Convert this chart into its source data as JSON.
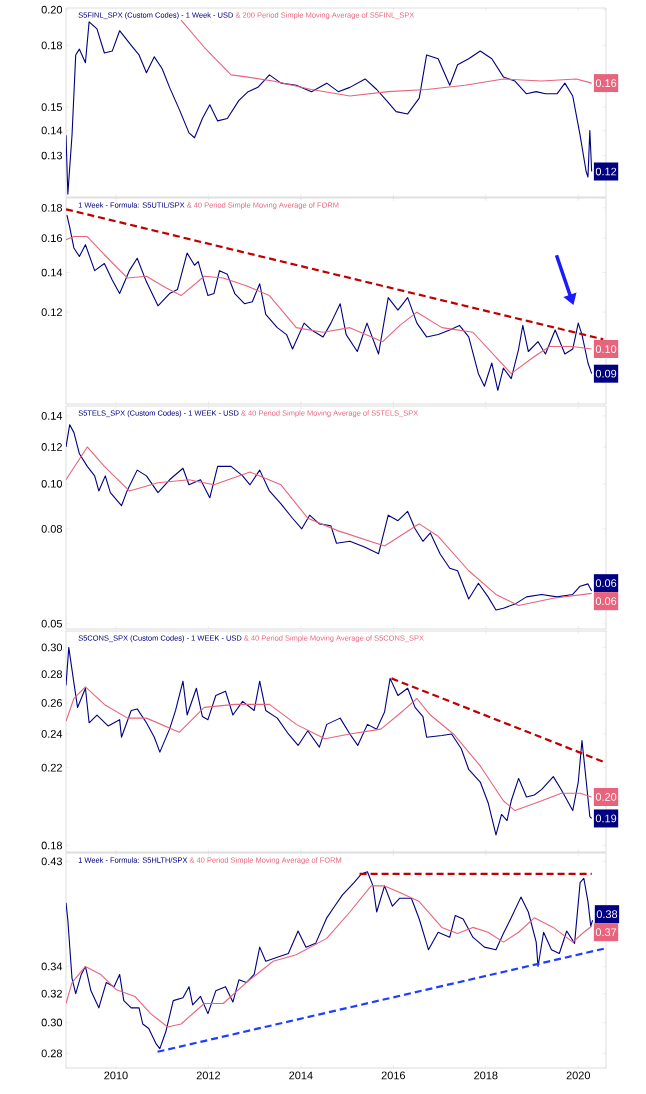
{
  "chart_data": [
    {
      "type": "line",
      "log": true,
      "tick_labels": "y",
      "xlim": [
        2008.92,
        2020.6
      ],
      "ylim": [
        0.115,
        0.201
      ],
      "xticks": [
        2010,
        2012,
        2014,
        2016,
        2018,
        2020
      ],
      "yticks": [
        {
          "value": 0.13,
          "label": "0.13"
        },
        {
          "value": 0.14,
          "label": "0.14"
        },
        {
          "value": 0.15,
          "label": "0.15"
        },
        {
          "value": 0.18,
          "label": "0.18"
        },
        {
          "value": 0.2,
          "label": "0.20"
        }
      ],
      "series": [
        {
          "name": "S5FINL_SPX (Custom Codes) - 1 Week - USD",
          "color": "#000080",
          "x": [
            2008.92,
            2008.96,
            2009.05,
            2009.13,
            2009.21,
            2009.34,
            2009.42,
            2009.59,
            2009.75,
            2009.92,
            2010.08,
            2010.33,
            2010.5,
            2010.66,
            2010.83,
            2011.0,
            2011.16,
            2011.37,
            2011.58,
            2011.7,
            2011.87,
            2012.03,
            2012.2,
            2012.41,
            2012.66,
            2012.86,
            2013.07,
            2013.32,
            2013.57,
            2013.9,
            2014.23,
            2014.56,
            2014.81,
            2015.06,
            2015.39,
            2015.64,
            2015.85,
            2016.06,
            2016.31,
            2016.56,
            2016.72,
            2016.97,
            2017.22,
            2017.39,
            2017.63,
            2017.88,
            2018.13,
            2018.38,
            2018.63,
            2018.88,
            2019.09,
            2019.29,
            2019.54,
            2019.71,
            2019.88,
            2020.04,
            2020.17,
            2020.21,
            2020.25,
            2020.29
          ],
          "values": [
            0.138,
            0.116,
            0.138,
            0.175,
            0.178,
            0.171,
            0.193,
            0.189,
            0.176,
            0.177,
            0.188,
            0.18,
            0.175,
            0.166,
            0.174,
            0.168,
            0.159,
            0.149,
            0.139,
            0.137,
            0.145,
            0.151,
            0.144,
            0.145,
            0.153,
            0.157,
            0.159,
            0.165,
            0.161,
            0.16,
            0.157,
            0.161,
            0.157,
            0.159,
            0.163,
            0.158,
            0.153,
            0.148,
            0.147,
            0.154,
            0.175,
            0.173,
            0.16,
            0.17,
            0.173,
            0.177,
            0.173,
            0.164,
            0.162,
            0.156,
            0.157,
            0.156,
            0.156,
            0.161,
            0.155,
            0.138,
            0.124,
            0.122,
            0.14,
            0.124
          ],
          "value_labels": [
            null,
            null,
            null,
            null,
            null,
            null,
            null,
            null,
            null,
            null,
            null,
            null,
            null,
            null,
            null,
            null,
            null,
            null,
            null,
            null,
            null,
            null,
            null,
            null,
            null,
            null,
            null,
            null,
            null,
            null,
            null,
            null,
            null,
            null,
            null,
            null,
            null,
            null,
            null,
            null,
            null,
            null,
            null,
            null,
            null,
            null,
            null,
            null,
            null,
            null,
            null,
            null,
            null,
            null,
            null,
            null,
            null,
            null,
            null,
            "0.12"
          ]
        },
        {
          "name": "& 200 Period Simple Moving Average of S5FINL_SPX",
          "color": "#e8647c",
          "x": [
            2011.41,
            2011.91,
            2012.49,
            2012.82,
            2013.4,
            2014.23,
            2015.06,
            2015.89,
            2016.72,
            2017.55,
            2018.38,
            2019.2,
            2019.96,
            2020.29
          ],
          "values": [
            0.194,
            0.179,
            0.165,
            0.164,
            0.162,
            0.158,
            0.155,
            0.157,
            0.158,
            0.16,
            0.163,
            0.162,
            0.163,
            0.161
          ],
          "value_labels": [
            null,
            null,
            null,
            null,
            null,
            null,
            null,
            null,
            null,
            null,
            null,
            null,
            null,
            "0.16"
          ]
        }
      ]
    },
    {
      "type": "line",
      "log": true,
      "tick_labels": "y",
      "xlim": [
        2008.92,
        2020.6
      ],
      "ylim": [
        0.084,
        0.187
      ],
      "xticks": [
        2010,
        2012,
        2014,
        2016,
        2018,
        2020
      ],
      "yticks": [
        {
          "value": 0.12,
          "label": "0.12"
        },
        {
          "value": 0.14,
          "label": "0.14"
        },
        {
          "value": 0.16,
          "label": "0.16"
        },
        {
          "value": 0.18,
          "label": "0.18"
        }
      ],
      "series": [
        {
          "name": "1 Week - Formula: S5UTIL/SPX",
          "color": "#000080",
          "x": [
            2008.94,
            2009.0,
            2009.09,
            2009.21,
            2009.34,
            2009.54,
            2009.75,
            2009.92,
            2010.08,
            2010.29,
            2010.46,
            2010.66,
            2010.91,
            2011.16,
            2011.33,
            2011.54,
            2011.7,
            2011.78,
            2011.99,
            2012.12,
            2012.24,
            2012.41,
            2012.57,
            2012.78,
            2012.95,
            2013.11,
            2013.24,
            2013.49,
            2013.69,
            2013.82,
            2014.07,
            2014.23,
            2014.48,
            2014.65,
            2014.85,
            2014.98,
            2015.22,
            2015.43,
            2015.68,
            2015.89,
            2016.1,
            2016.31,
            2016.51,
            2016.72,
            2016.97,
            2017.22,
            2017.43,
            2017.63,
            2017.84,
            2017.97,
            2018.13,
            2018.26,
            2018.38,
            2018.55,
            2018.71,
            2018.8,
            2018.92,
            2019.13,
            2019.29,
            2019.5,
            2019.71,
            2019.88,
            2020.0,
            2020.08,
            2020.21,
            2020.29
          ],
          "values": [
            0.175,
            0.167,
            0.154,
            0.149,
            0.156,
            0.141,
            0.145,
            0.136,
            0.129,
            0.141,
            0.148,
            0.135,
            0.123,
            0.129,
            0.131,
            0.151,
            0.144,
            0.146,
            0.128,
            0.129,
            0.141,
            0.139,
            0.129,
            0.124,
            0.125,
            0.134,
            0.119,
            0.113,
            0.11,
            0.104,
            0.115,
            0.112,
            0.109,
            0.115,
            0.124,
            0.11,
            0.103,
            0.115,
            0.102,
            0.127,
            0.121,
            0.127,
            0.115,
            0.109,
            0.11,
            0.112,
            0.114,
            0.109,
            0.0945,
            0.09,
            0.0985,
            0.0886,
            0.0966,
            0.0927,
            0.104,
            0.114,
            0.103,
            0.107,
            0.102,
            0.112,
            0.102,
            0.104,
            0.115,
            0.11,
            0.0985,
            0.0945
          ],
          "value_labels": [
            null,
            null,
            null,
            null,
            null,
            null,
            null,
            null,
            null,
            null,
            null,
            null,
            null,
            null,
            null,
            null,
            null,
            null,
            null,
            null,
            null,
            null,
            null,
            null,
            null,
            null,
            null,
            null,
            null,
            null,
            null,
            null,
            null,
            null,
            null,
            null,
            null,
            null,
            null,
            null,
            null,
            null,
            null,
            null,
            null,
            null,
            null,
            null,
            null,
            null,
            null,
            null,
            null,
            null,
            null,
            null,
            null,
            null,
            null,
            null,
            null,
            null,
            null,
            null,
            null,
            "0.09"
          ]
        },
        {
          "name": "& 40 Period Simple Moving Average of FORM",
          "color": "#e8647c",
          "x": [
            2008.92,
            2009.09,
            2009.38,
            2009.75,
            2010.25,
            2010.66,
            2011.08,
            2011.41,
            2011.91,
            2012.32,
            2012.82,
            2013.32,
            2013.9,
            2014.48,
            2015.06,
            2015.77,
            2016.14,
            2016.51,
            2017.05,
            2017.72,
            2018.55,
            2019.05,
            2019.38,
            2019.88,
            2020.29
          ],
          "values": [
            0.159,
            0.161,
            0.161,
            0.15,
            0.137,
            0.138,
            0.132,
            0.128,
            0.138,
            0.137,
            0.133,
            0.128,
            0.113,
            0.111,
            0.113,
            0.107,
            0.114,
            0.12,
            0.113,
            0.111,
            0.0945,
            0.101,
            0.105,
            0.105,
            0.104
          ],
          "value_labels": [
            null,
            null,
            null,
            null,
            null,
            null,
            null,
            null,
            null,
            null,
            null,
            null,
            null,
            null,
            null,
            null,
            null,
            null,
            null,
            null,
            null,
            null,
            null,
            null,
            "0.10"
          ]
        },
        {
          "type": "line",
          "color": "#c00000",
          "line_style": "dashed",
          "x": [
            2008.92,
            2020.54
          ],
          "values": [
            0.179,
            0.108
          ]
        }
      ]
    },
    {
      "type": "line",
      "log": true,
      "tick_labels": "y",
      "xlim": [
        2008.92,
        2020.6
      ],
      "ylim": [
        0.0487,
        0.147
      ],
      "xticks": [
        2010,
        2012,
        2014,
        2016,
        2018,
        2020
      ],
      "yticks": [
        {
          "value": 0.05,
          "label": "0.05"
        },
        {
          "value": 0.08,
          "label": "0.08"
        },
        {
          "value": 0.1,
          "label": "0.10"
        },
        {
          "value": 0.12,
          "label": "0.12"
        },
        {
          "value": 0.14,
          "label": "0.14"
        }
      ],
      "series": [
        {
          "name": "S5TELS_SPX (Custom Codes) - 1 WEEK - USD",
          "color": "#000080",
          "x": [
            2008.92,
            2009.0,
            2009.09,
            2009.21,
            2009.38,
            2009.54,
            2009.63,
            2009.77,
            2009.88,
            2010.12,
            2010.25,
            2010.46,
            2010.66,
            2010.91,
            2011.16,
            2011.45,
            2011.58,
            2011.83,
            2012.03,
            2012.2,
            2012.49,
            2012.74,
            2012.9,
            2013.11,
            2013.32,
            2013.57,
            2013.82,
            2014.02,
            2014.19,
            2014.4,
            2014.65,
            2014.77,
            2015.06,
            2015.39,
            2015.68,
            2015.89,
            2016.1,
            2016.31,
            2016.47,
            2016.64,
            2016.8,
            2017.01,
            2017.22,
            2017.39,
            2017.63,
            2017.84,
            2018.05,
            2018.22,
            2018.38,
            2018.63,
            2018.88,
            2019.21,
            2019.54,
            2019.88,
            2020.04,
            2020.21,
            2020.29
          ],
          "values": [
            0.12,
            0.134,
            0.129,
            0.116,
            0.109,
            0.104,
            0.0965,
            0.104,
            0.0957,
            0.0897,
            0.097,
            0.107,
            0.104,
            0.0957,
            0.102,
            0.108,
            0.0995,
            0.102,
            0.0933,
            0.109,
            0.109,
            0.104,
            0.0995,
            0.107,
            0.0965,
            0.0905,
            0.0843,
            0.08,
            0.0856,
            0.082,
            0.0812,
            0.0745,
            0.0752,
            0.073,
            0.0707,
            0.0856,
            0.0833,
            0.0872,
            0.08,
            0.0752,
            0.0784,
            0.0707,
            0.0658,
            0.065,
            0.0565,
            0.0611,
            0.0571,
            0.0535,
            0.054,
            0.0551,
            0.0571,
            0.0578,
            0.0571,
            0.0578,
            0.0602,
            0.0609,
            0.0588
          ],
          "value_labels": [
            null,
            null,
            null,
            null,
            null,
            null,
            null,
            null,
            null,
            null,
            null,
            null,
            null,
            null,
            null,
            null,
            null,
            null,
            null,
            null,
            null,
            null,
            null,
            null,
            null,
            null,
            null,
            null,
            null,
            null,
            null,
            null,
            null,
            null,
            null,
            null,
            null,
            null,
            null,
            null,
            null,
            null,
            null,
            null,
            null,
            null,
            null,
            null,
            null,
            null,
            null,
            null,
            null,
            null,
            null,
            null,
            "0.06"
          ]
        },
        {
          "name": "& 40 Period Simple Moving Average of S5TELS_SPX",
          "color": "#e8647c",
          "x": [
            2008.92,
            2009.38,
            2009.75,
            2010.29,
            2010.91,
            2011.58,
            2012.12,
            2012.9,
            2013.57,
            2014.15,
            2014.81,
            2015.81,
            2016.56,
            2016.97,
            2017.63,
            2018.22,
            2018.71,
            2019.46,
            2020.29
          ],
          "values": [
            0.102,
            0.12,
            0.109,
            0.0965,
            0.1005,
            0.102,
            0.0995,
            0.106,
            0.0995,
            0.0843,
            0.0792,
            0.0735,
            0.082,
            0.0771,
            0.065,
            0.0578,
            0.0547,
            0.0567,
            0.0581
          ],
          "value_labels": [
            null,
            null,
            null,
            null,
            null,
            null,
            null,
            null,
            null,
            null,
            null,
            null,
            null,
            null,
            null,
            null,
            null,
            null,
            "0.06"
          ]
        }
      ]
    },
    {
      "type": "line",
      "log": true,
      "tick_labels": "y",
      "xlim": [
        2008.92,
        2020.6
      ],
      "ylim": [
        0.177,
        0.313
      ],
      "xticks": [
        2010,
        2012,
        2014,
        2016,
        2018,
        2020
      ],
      "yticks": [
        {
          "value": 0.18,
          "label": "0.18"
        },
        {
          "value": 0.22,
          "label": "0.22"
        },
        {
          "value": 0.24,
          "label": "0.24"
        },
        {
          "value": 0.26,
          "label": "0.26"
        },
        {
          "value": 0.28,
          "label": "0.28"
        },
        {
          "value": 0.3,
          "label": "0.30"
        }
      ],
      "series": [
        {
          "name": "S5CONS_SPX (Custom Codes) - 1 WEEK - USD",
          "color": "#000080",
          "x": [
            2008.92,
            2008.98,
            2009.09,
            2009.17,
            2009.34,
            2009.42,
            2009.59,
            2009.83,
            2010.08,
            2010.12,
            2010.33,
            2010.46,
            2010.66,
            2010.83,
            2010.95,
            2011.16,
            2011.29,
            2011.45,
            2011.54,
            2011.74,
            2011.87,
            2011.99,
            2012.16,
            2012.37,
            2012.53,
            2012.74,
            2012.99,
            2013.11,
            2013.24,
            2013.49,
            2013.73,
            2013.94,
            2014.15,
            2014.4,
            2014.56,
            2014.85,
            2015.06,
            2015.23,
            2015.44,
            2015.64,
            2015.81,
            2015.93,
            2016.1,
            2016.31,
            2016.47,
            2016.64,
            2016.72,
            2017.05,
            2017.26,
            2017.47,
            2017.63,
            2017.88,
            2018.05,
            2018.22,
            2018.34,
            2018.46,
            2018.55,
            2018.71,
            2018.88,
            2019.05,
            2019.21,
            2019.46,
            2019.63,
            2019.88,
            2020.0,
            2020.08,
            2020.17,
            2020.25,
            2020.29
          ],
          "values": [
            0.272,
            0.3,
            0.274,
            0.257,
            0.27,
            0.247,
            0.252,
            0.245,
            0.249,
            0.238,
            0.255,
            0.256,
            0.247,
            0.238,
            0.229,
            0.243,
            0.255,
            0.275,
            0.252,
            0.27,
            0.251,
            0.249,
            0.265,
            0.268,
            0.252,
            0.261,
            0.255,
            0.275,
            0.255,
            0.25,
            0.24,
            0.233,
            0.242,
            0.232,
            0.246,
            0.25,
            0.24,
            0.233,
            0.246,
            0.243,
            0.254,
            0.277,
            0.265,
            0.27,
            0.257,
            0.251,
            0.238,
            0.239,
            0.24,
            0.231,
            0.219,
            0.212,
            0.201,
            0.185,
            0.195,
            0.192,
            0.202,
            0.214,
            0.204,
            0.205,
            0.208,
            0.215,
            0.208,
            0.197,
            0.212,
            0.236,
            0.213,
            0.194,
            0.193
          ],
          "value_labels": [
            null,
            null,
            null,
            null,
            null,
            null,
            null,
            null,
            null,
            null,
            null,
            null,
            null,
            null,
            null,
            null,
            null,
            null,
            null,
            null,
            null,
            null,
            null,
            null,
            null,
            null,
            null,
            null,
            null,
            null,
            null,
            null,
            null,
            null,
            null,
            null,
            null,
            null,
            null,
            null,
            null,
            null,
            null,
            null,
            null,
            null,
            null,
            null,
            null,
            null,
            null,
            null,
            null,
            null,
            null,
            null,
            null,
            null,
            null,
            null,
            null,
            null,
            null,
            null,
            null,
            null,
            null,
            null,
            "0.19"
          ]
        },
        {
          "name": "& 40 Period Simple Moving Average of S5CONS_SPX",
          "color": "#e8647c",
          "x": [
            2008.92,
            2009.09,
            2009.34,
            2009.75,
            2010.25,
            2010.66,
            2011.37,
            2011.91,
            2012.57,
            2013.32,
            2013.9,
            2014.52,
            2015.06,
            2015.73,
            2016.22,
            2016.51,
            2016.8,
            2017.3,
            2017.88,
            2018.38,
            2018.63,
            2019.21,
            2019.63,
            2020.04,
            2020.29
          ],
          "values": [
            0.248,
            0.263,
            0.271,
            0.259,
            0.25,
            0.25,
            0.241,
            0.257,
            0.259,
            0.259,
            0.246,
            0.237,
            0.24,
            0.243,
            0.255,
            0.263,
            0.252,
            0.24,
            0.221,
            0.202,
            0.197,
            0.202,
            0.206,
            0.206,
            0.204
          ],
          "value_labels": [
            null,
            null,
            null,
            null,
            null,
            null,
            null,
            null,
            null,
            null,
            null,
            null,
            null,
            null,
            null,
            null,
            null,
            null,
            null,
            null,
            null,
            null,
            null,
            null,
            "0.20"
          ]
        },
        {
          "type": "line",
          "color": "#c00000",
          "line_style": "dashed",
          "x": [
            2015.96,
            2020.58
          ],
          "values": [
            0.277,
            0.223
          ]
        }
      ]
    },
    {
      "type": "line",
      "log": true,
      "xlim": [
        2008.92,
        2020.6
      ],
      "ylim": [
        0.271,
        0.438
      ],
      "xticks": [
        2010,
        2012,
        2014,
        2016,
        2018,
        2020
      ],
      "yticks": [
        {
          "value": 0.28,
          "label": "0.28"
        },
        {
          "value": 0.3,
          "label": "0.30"
        },
        {
          "value": 0.32,
          "label": "0.32"
        },
        {
          "value": 0.34,
          "label": "0.34"
        },
        {
          "value": 0.43,
          "label": "0.43"
        }
      ],
      "series": [
        {
          "name": "1 Week - Formula: S5HLTH/SPX",
          "color": "#000080",
          "x": [
            2008.92,
            2008.96,
            2009.05,
            2009.13,
            2009.25,
            2009.34,
            2009.46,
            2009.63,
            2009.79,
            2009.96,
            2010.08,
            2010.17,
            2010.33,
            2010.5,
            2010.58,
            2010.71,
            2010.87,
            2010.95,
            2011.08,
            2011.24,
            2011.45,
            2011.58,
            2011.66,
            2011.83,
            2011.99,
            2012.16,
            2012.37,
            2012.53,
            2012.66,
            2012.82,
            2012.99,
            2013.11,
            2013.24,
            2013.49,
            2013.73,
            2013.94,
            2014.11,
            2014.32,
            2014.56,
            2014.73,
            2014.9,
            2015.15,
            2015.31,
            2015.44,
            2015.56,
            2015.64,
            2015.81,
            2015.98,
            2016.14,
            2016.39,
            2016.56,
            2016.76,
            2016.97,
            2017.22,
            2017.34,
            2017.51,
            2017.72,
            2017.97,
            2018.22,
            2018.38,
            2018.55,
            2018.76,
            2018.92,
            2019.09,
            2019.13,
            2019.25,
            2019.42,
            2019.59,
            2019.75,
            2019.92,
            2020.04,
            2020.12,
            2020.21,
            2020.27,
            2020.31
          ],
          "values": [
            0.392,
            0.377,
            0.331,
            0.32,
            0.334,
            0.34,
            0.322,
            0.31,
            0.328,
            0.325,
            0.334,
            0.315,
            0.31,
            0.31,
            0.299,
            0.296,
            0.286,
            0.283,
            0.294,
            0.315,
            0.317,
            0.325,
            0.312,
            0.318,
            0.306,
            0.322,
            0.325,
            0.314,
            0.33,
            0.328,
            0.334,
            0.355,
            0.344,
            0.347,
            0.35,
            0.368,
            0.355,
            0.358,
            0.379,
            0.389,
            0.399,
            0.41,
            0.418,
            0.42,
            0.407,
            0.384,
            0.407,
            0.389,
            0.396,
            0.396,
            0.378,
            0.353,
            0.367,
            0.363,
            0.381,
            0.378,
            0.363,
            0.355,
            0.353,
            0.366,
            0.379,
            0.397,
            0.384,
            0.359,
            0.34,
            0.367,
            0.353,
            0.35,
            0.368,
            0.358,
            0.41,
            0.414,
            0.393,
            0.372,
            0.377
          ],
          "value_labels": [
            null,
            null,
            null,
            null,
            null,
            null,
            null,
            null,
            null,
            null,
            null,
            null,
            null,
            null,
            null,
            null,
            null,
            null,
            null,
            null,
            null,
            null,
            null,
            null,
            null,
            null,
            null,
            null,
            null,
            null,
            null,
            null,
            null,
            null,
            null,
            null,
            null,
            null,
            null,
            null,
            null,
            null,
            null,
            null,
            null,
            null,
            null,
            null,
            null,
            null,
            null,
            null,
            null,
            null,
            null,
            null,
            null,
            null,
            null,
            null,
            null,
            null,
            null,
            null,
            null,
            null,
            null,
            null,
            null,
            null,
            null,
            null,
            null,
            null,
            "0.38"
          ]
        },
        {
          "name": "& 40 Period Simple Moving Average of FORM",
          "color": "#e8647c",
          "x": [
            2008.92,
            2009.05,
            2009.34,
            2009.67,
            2010.0,
            2010.41,
            2010.75,
            2011.12,
            2011.41,
            2011.91,
            2012.32,
            2012.82,
            2013.4,
            2013.9,
            2014.56,
            2015.06,
            2015.52,
            2015.81,
            2016.14,
            2016.56,
            2017.05,
            2017.39,
            2017.72,
            2018.05,
            2018.38,
            2018.71,
            2019.05,
            2019.46,
            2019.88,
            2020.12,
            2020.29
          ],
          "values": [
            0.313,
            0.328,
            0.34,
            0.334,
            0.323,
            0.318,
            0.306,
            0.297,
            0.299,
            0.313,
            0.313,
            0.328,
            0.344,
            0.349,
            0.362,
            0.384,
            0.407,
            0.407,
            0.401,
            0.393,
            0.371,
            0.366,
            0.371,
            0.367,
            0.359,
            0.367,
            0.379,
            0.371,
            0.359,
            0.367,
            0.372
          ],
          "value_labels": [
            null,
            null,
            null,
            null,
            null,
            null,
            null,
            null,
            null,
            null,
            null,
            null,
            null,
            null,
            null,
            null,
            null,
            null,
            null,
            null,
            null,
            null,
            null,
            null,
            null,
            null,
            null,
            null,
            null,
            null,
            "0.37"
          ]
        },
        {
          "type": "line",
          "color": "#c00000",
          "line_style": "dashed",
          "x": [
            2015.27,
            2020.29
          ],
          "values": [
            0.418,
            0.418
          ]
        },
        {
          "type": "line",
          "color": "#1f3fff",
          "line_style": "dashed",
          "x": [
            2010.9,
            2020.58
          ],
          "values": [
            0.281,
            0.354
          ]
        }
      ]
    }
  ]
}
